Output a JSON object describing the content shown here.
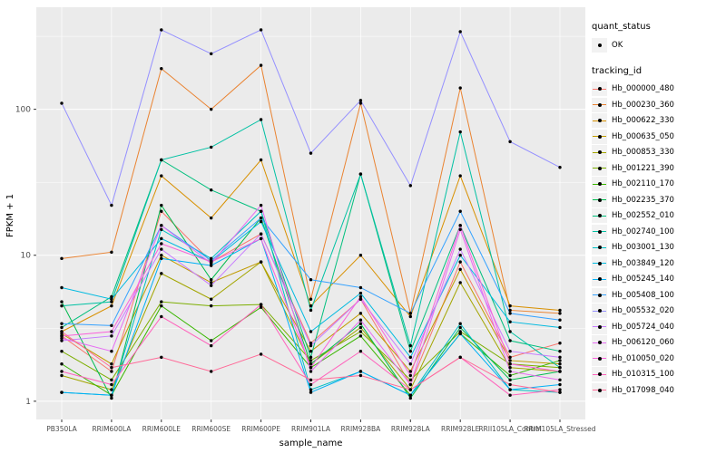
{
  "figure": {
    "background": "#FFFFFF",
    "panel_background": "#EBEBEB",
    "gridline_color": "#FFFFFF",
    "axis_text_color": "#4D4D4D",
    "tick_color": "#333333",
    "point_color": "#000000"
  },
  "chart_data": {
    "type": "line",
    "title": "",
    "xlabel": "sample_name",
    "ylabel": "FPKM + 1",
    "yscale": "log10",
    "yticks": [
      1,
      10,
      100
    ],
    "yticks_minor": [
      3.162,
      31.62,
      316.2
    ],
    "ylim": [
      0.75,
      500
    ],
    "categories": [
      "PB350LA",
      "RRIM600LA",
      "RRIM600LE",
      "RRIM600SE",
      "RRIM600PE",
      "RRIM901LA",
      "RRIM928BA",
      "RRIM928LA",
      "RRIM928LE",
      "RRII105LA_Control",
      "RRIM105LA_Stressed"
    ],
    "legend": {
      "position": "right",
      "quant_status_title": "quant_status",
      "quant_status_items": [
        "OK"
      ],
      "tracking_id_title": "tracking_id"
    },
    "series": [
      {
        "name": "Hb_000000_480",
        "color": "#F8766D",
        "values": [
          2.8,
          1.6,
          20,
          9,
          14,
          2.5,
          5,
          1.3,
          9,
          2.0,
          2.5
        ]
      },
      {
        "name": "Hb_000230_360",
        "color": "#EA8331",
        "values": [
          9.5,
          10.5,
          190,
          100,
          200,
          5,
          110,
          4,
          140,
          4.2,
          4.0
        ]
      },
      {
        "name": "Hb_000622_330",
        "color": "#D89000",
        "values": [
          3.0,
          4.5,
          35,
          18,
          45,
          4.5,
          10,
          3.8,
          35,
          4.5,
          4.2
        ]
      },
      {
        "name": "Hb_000635_050",
        "color": "#C09B00",
        "values": [
          2.9,
          1.8,
          10,
          6.5,
          9,
          2.2,
          4,
          1.6,
          8,
          1.9,
          1.8
        ]
      },
      {
        "name": "Hb_000853_330",
        "color": "#A3A500",
        "values": [
          1.5,
          1.2,
          7.5,
          5,
          9,
          1.8,
          3.2,
          1.2,
          6.5,
          1.7,
          1.6
        ]
      },
      {
        "name": "Hb_001221_390",
        "color": "#7CAE00",
        "values": [
          2.2,
          1.4,
          4.8,
          4.5,
          4.6,
          1.9,
          3.0,
          1.4,
          3.0,
          1.8,
          1.7
        ]
      },
      {
        "name": "Hb_002110_170",
        "color": "#39B600",
        "values": [
          1.8,
          1.1,
          4.5,
          2.6,
          4.4,
          1.7,
          2.8,
          1.1,
          2.9,
          1.5,
          1.9
        ]
      },
      {
        "name": "Hb_002235_370",
        "color": "#00BB4E",
        "values": [
          4.8,
          1.05,
          22,
          6.8,
          18,
          1.8,
          3.4,
          1.05,
          3.2,
          1.4,
          1.6
        ]
      },
      {
        "name": "Hb_002552_010",
        "color": "#00BF7D",
        "values": [
          3.2,
          5.2,
          45,
          28,
          20,
          2.0,
          36,
          2.2,
          16,
          2.6,
          2.2
        ]
      },
      {
        "name": "Hb_002740_100",
        "color": "#00C1A3",
        "values": [
          4.5,
          4.8,
          45,
          55,
          85,
          4.2,
          36,
          2.4,
          70,
          3.0,
          1.7
        ]
      },
      {
        "name": "Hb_003001_130",
        "color": "#00BFC4",
        "values": [
          1.15,
          1.1,
          15,
          9.5,
          20,
          1.2,
          1.6,
          1.1,
          3.4,
          1.2,
          1.15
        ]
      },
      {
        "name": "Hb_003849_120",
        "color": "#00BAE0",
        "values": [
          6.0,
          5.0,
          13,
          9.0,
          17,
          3.0,
          5.5,
          2.0,
          10,
          3.5,
          3.2
        ]
      },
      {
        "name": "Hb_005245_140",
        "color": "#00B0F6",
        "values": [
          1.15,
          1.1,
          9.5,
          8.5,
          13,
          1.15,
          1.6,
          1.1,
          2.9,
          1.2,
          1.3
        ]
      },
      {
        "name": "Hb_005408_100",
        "color": "#35A2FF",
        "values": [
          3.4,
          3.3,
          16,
          9.2,
          18,
          6.8,
          6.0,
          4.0,
          20,
          4.0,
          3.6
        ]
      },
      {
        "name": "Hb_005532_020",
        "color": "#9590FF",
        "values": [
          110,
          22,
          350,
          240,
          350,
          50,
          115,
          30,
          340,
          60,
          40
        ]
      },
      {
        "name": "Hb_005724_040",
        "color": "#C77CFF",
        "values": [
          2.6,
          2.8,
          11,
          6.2,
          14,
          2.4,
          5.0,
          1.8,
          11,
          2.2,
          2.0
        ]
      },
      {
        "name": "Hb_006120_060",
        "color": "#E76BF3",
        "values": [
          2.7,
          2.2,
          16,
          8.8,
          22,
          1.6,
          3.6,
          1.3,
          15,
          1.6,
          1.4
        ]
      },
      {
        "name": "Hb_010050_020",
        "color": "#FA62DB",
        "values": [
          2.8,
          3.0,
          12,
          9.0,
          13,
          1.7,
          5.2,
          1.5,
          16,
          1.8,
          1.6
        ]
      },
      {
        "name": "Hb_010315_100",
        "color": "#FF62BC",
        "values": [
          1.6,
          1.3,
          3.8,
          2.4,
          4.6,
          1.3,
          2.2,
          1.2,
          2.0,
          1.1,
          1.2
        ]
      },
      {
        "name": "Hb_017098_040",
        "color": "#FF6A98",
        "values": [
          3.0,
          1.7,
          2.0,
          1.6,
          2.1,
          1.4,
          1.5,
          1.2,
          2.0,
          1.3,
          1.15
        ]
      }
    ]
  }
}
